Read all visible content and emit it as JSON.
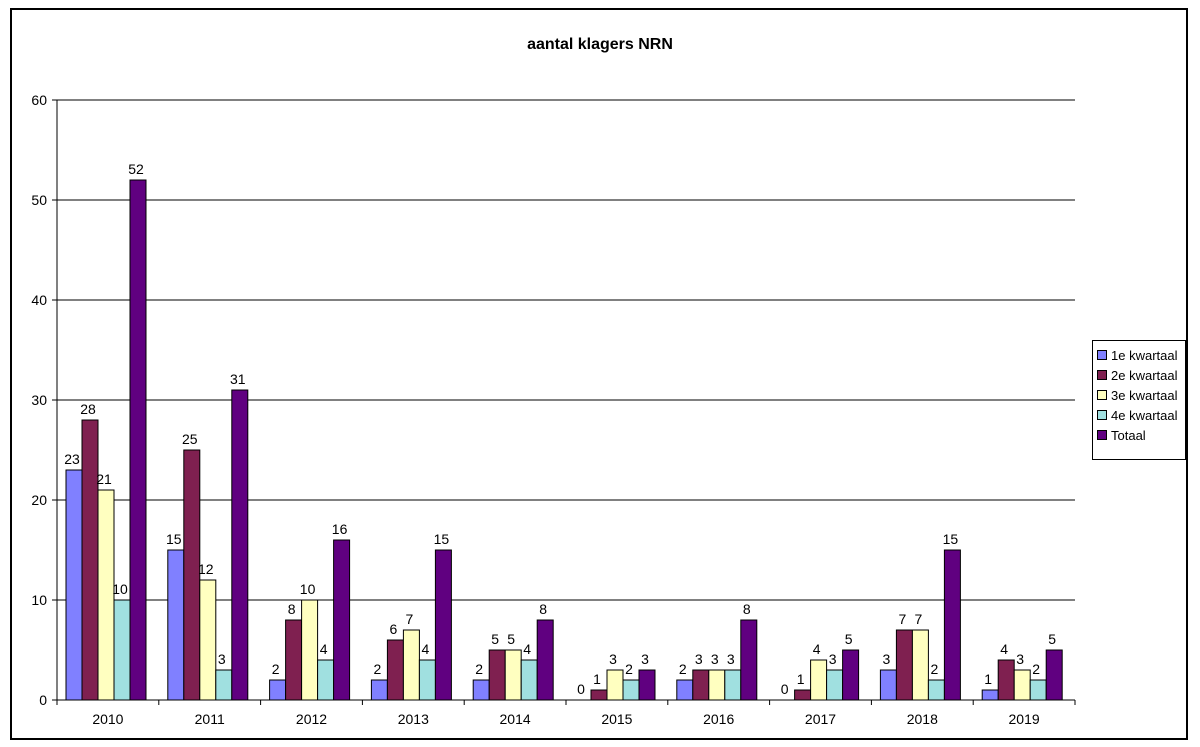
{
  "chart_data": {
    "type": "bar",
    "title": "aantal klagers NRN",
    "xlabel": "",
    "ylabel": "",
    "ylim": [
      0,
      60
    ],
    "yticks": [
      0,
      10,
      20,
      30,
      40,
      50,
      60
    ],
    "grid": true,
    "legend_position": "right",
    "categories": [
      "2010",
      "2011",
      "2012",
      "2013",
      "2014",
      "2015",
      "2016",
      "2017",
      "2018",
      "2019"
    ],
    "series": [
      {
        "name": "1e kwartaal",
        "color": "#8080ff",
        "values": [
          23,
          15,
          2,
          2,
          2,
          0,
          2,
          0,
          3,
          1
        ]
      },
      {
        "name": "2e kwartaal",
        "color": "#7f2050",
        "values": [
          28,
          25,
          8,
          6,
          5,
          1,
          3,
          1,
          7,
          4
        ]
      },
      {
        "name": "3e kwartaal",
        "color": "#ffffc0",
        "values": [
          21,
          12,
          10,
          7,
          5,
          3,
          3,
          4,
          7,
          3
        ]
      },
      {
        "name": "4e kwartaal",
        "color": "#a0e0e0",
        "values": [
          10,
          3,
          4,
          4,
          4,
          2,
          3,
          3,
          2,
          2
        ]
      },
      {
        "name": "Totaal",
        "color": "#600080",
        "values": [
          52,
          31,
          16,
          15,
          8,
          3,
          8,
          5,
          15,
          5
        ]
      }
    ]
  }
}
